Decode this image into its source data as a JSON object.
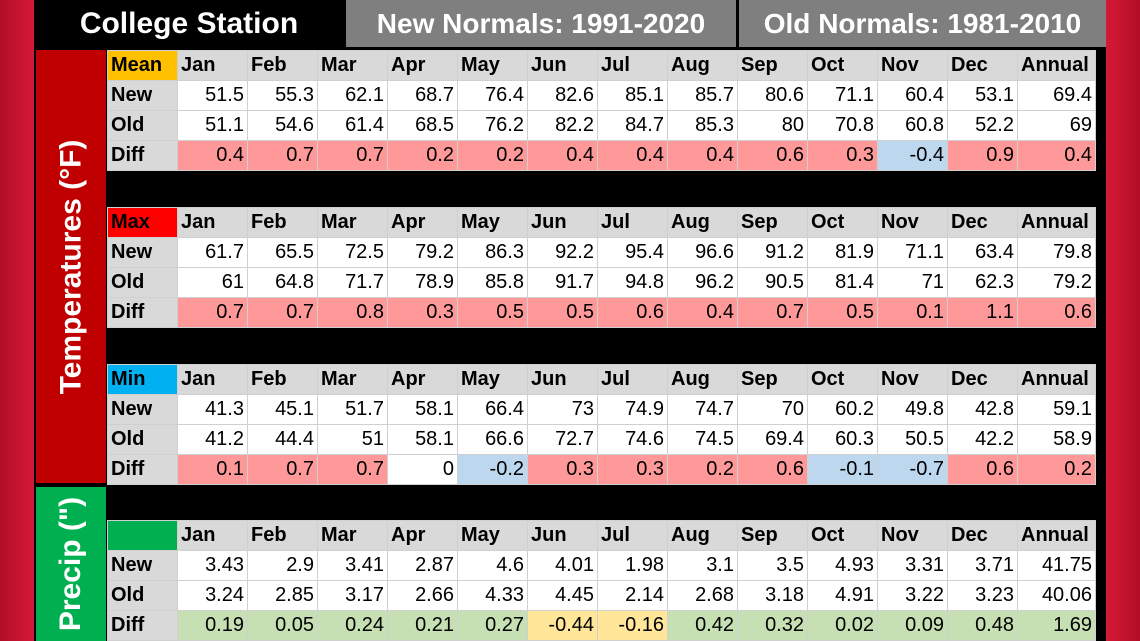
{
  "header": {
    "title": "College Station",
    "new_label": "New Normals: 1991-2020",
    "old_label": "Old Normals: 1981-2010"
  },
  "side": {
    "temp_label": "Temperatures (°F)",
    "precip_label": "Precip (\")"
  },
  "colors": {
    "mean_key": "#ffc000",
    "max_key": "#ff0000",
    "min_key": "#00b0f0",
    "precip_key": "#00b050",
    "increase": "#ff9999",
    "decrease": "#bdd7ee",
    "precip_increase": "#c6e0b4",
    "precip_decrease": "#ffe699"
  },
  "months": [
    "Jan",
    "Feb",
    "Mar",
    "Apr",
    "May",
    "Jun",
    "Jul",
    "Aug",
    "Sep",
    "Oct",
    "Nov",
    "Dec",
    "Annual"
  ],
  "row_labels": {
    "new": "New",
    "old": "Old",
    "diff": "Diff"
  },
  "tables": [
    {
      "key": "Mean",
      "new": [
        "51.5",
        "55.3",
        "62.1",
        "68.7",
        "76.4",
        "82.6",
        "85.1",
        "85.7",
        "80.6",
        "71.1",
        "60.4",
        "53.1",
        "69.4"
      ],
      "old": [
        "51.1",
        "54.6",
        "61.4",
        "68.5",
        "76.2",
        "82.2",
        "84.7",
        "85.3",
        "80",
        "70.8",
        "60.8",
        "52.2",
        "69"
      ],
      "diff": [
        "0.4",
        "0.7",
        "0.7",
        "0.2",
        "0.2",
        "0.4",
        "0.4",
        "0.4",
        "0.6",
        "0.3",
        "-0.4",
        "0.9",
        "0.4"
      ]
    },
    {
      "key": "Max",
      "new": [
        "61.7",
        "65.5",
        "72.5",
        "79.2",
        "86.3",
        "92.2",
        "95.4",
        "96.6",
        "91.2",
        "81.9",
        "71.1",
        "63.4",
        "79.8"
      ],
      "old": [
        "61",
        "64.8",
        "71.7",
        "78.9",
        "85.8",
        "91.7",
        "94.8",
        "96.2",
        "90.5",
        "81.4",
        "71",
        "62.3",
        "79.2"
      ],
      "diff": [
        "0.7",
        "0.7",
        "0.8",
        "0.3",
        "0.5",
        "0.5",
        "0.6",
        "0.4",
        "0.7",
        "0.5",
        "0.1",
        "1.1",
        "0.6"
      ]
    },
    {
      "key": "Min",
      "new": [
        "41.3",
        "45.1",
        "51.7",
        "58.1",
        "66.4",
        "73",
        "74.9",
        "74.7",
        "70",
        "60.2",
        "49.8",
        "42.8",
        "59.1"
      ],
      "old": [
        "41.2",
        "44.4",
        "51",
        "58.1",
        "66.6",
        "72.7",
        "74.6",
        "74.5",
        "69.4",
        "60.3",
        "50.5",
        "42.2",
        "58.9"
      ],
      "diff": [
        "0.1",
        "0.7",
        "0.7",
        "0",
        "-0.2",
        "0.3",
        "0.3",
        "0.2",
        "0.6",
        "-0.1",
        "-0.7",
        "0.6",
        "0.2"
      ]
    },
    {
      "key": "",
      "new": [
        "3.43",
        "2.9",
        "3.41",
        "2.87",
        "4.6",
        "4.01",
        "1.98",
        "3.1",
        "3.5",
        "4.93",
        "3.31",
        "3.71",
        "41.75"
      ],
      "old": [
        "3.24",
        "2.85",
        "3.17",
        "2.66",
        "4.33",
        "4.45",
        "2.14",
        "2.68",
        "3.18",
        "4.91",
        "3.22",
        "3.23",
        "40.06"
      ],
      "diff": [
        "0.19",
        "0.05",
        "0.24",
        "0.21",
        "0.27",
        "-0.44",
        "-0.16",
        "0.42",
        "0.32",
        "0.02",
        "0.09",
        "0.48",
        "1.69"
      ]
    }
  ]
}
